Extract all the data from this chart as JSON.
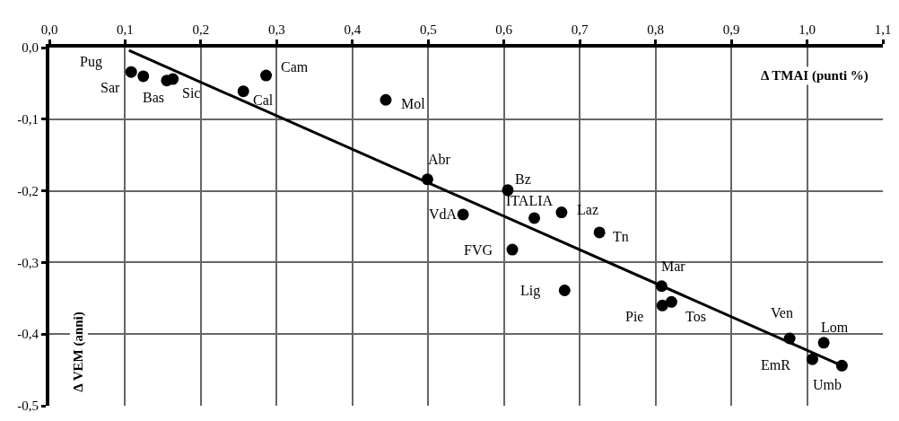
{
  "chart_data": {
    "type": "scatter",
    "xlabel": "Δ TMAI (punti %)",
    "ylabel": "Δ VEM (anni)",
    "xlim": [
      0,
      1.1
    ],
    "ylim": [
      -0.5,
      0
    ],
    "xticks": [
      {
        "value": 0,
        "label": "0,0"
      },
      {
        "value": 0.1,
        "label": "0,1"
      },
      {
        "value": 0.2,
        "label": "0,2"
      },
      {
        "value": 0.3,
        "label": "0,3"
      },
      {
        "value": 0.4,
        "label": "0,4"
      },
      {
        "value": 0.5,
        "label": "0,5"
      },
      {
        "value": 0.6,
        "label": "0,6"
      },
      {
        "value": 0.7,
        "label": "0,7"
      },
      {
        "value": 0.8,
        "label": "0,8"
      },
      {
        "value": 0.9,
        "label": "0,9"
      },
      {
        "value": 1.0,
        "label": "1,0"
      },
      {
        "value": 1.1,
        "label": "1,1"
      }
    ],
    "yticks": [
      {
        "value": 0,
        "label": "0,0"
      },
      {
        "value": -0.1,
        "label": "-0,1"
      },
      {
        "value": -0.2,
        "label": "-0,2"
      },
      {
        "value": -0.3,
        "label": "-0,3"
      },
      {
        "value": -0.4,
        "label": "-0,4"
      },
      {
        "value": -0.5,
        "label": "-0,5"
      }
    ],
    "grid": true,
    "series": [
      {
        "marker": "circle",
        "color": "#000000",
        "x": [
          0.108,
          0.124,
          0.155,
          0.163,
          0.256,
          0.286,
          0.444,
          0.499,
          0.605,
          0.64,
          0.676,
          0.546,
          0.726,
          0.611,
          0.68,
          0.808,
          0.809,
          0.821,
          0.977,
          1.022,
          1.007,
          1.046
        ],
        "values": [
          -0.034,
          -0.04,
          -0.046,
          -0.044,
          -0.061,
          -0.039,
          -0.073,
          -0.184,
          -0.199,
          -0.238,
          -0.23,
          -0.233,
          -0.258,
          -0.282,
          -0.339,
          -0.333,
          -0.36,
          -0.355,
          -0.406,
          -0.412,
          -0.435,
          -0.444
        ]
      },
      {
        "type": "line",
        "marker": "none",
        "color": "#000000",
        "x": [
          0.105,
          1.046
        ],
        "values": [
          -0.004,
          -0.444
        ]
      }
    ],
    "annotations": [
      {
        "text": "Pug",
        "x": 0.108,
        "y": -0.034
      },
      {
        "text": "Sar",
        "x": 0.124,
        "y": -0.04
      },
      {
        "text": "Bas",
        "x": 0.155,
        "y": -0.046
      },
      {
        "text": "Sic",
        "x": 0.163,
        "y": -0.044
      },
      {
        "text": "Cal",
        "x": 0.256,
        "y": -0.061
      },
      {
        "text": "Cam",
        "x": 0.286,
        "y": -0.039
      },
      {
        "text": "Mol",
        "x": 0.444,
        "y": -0.073
      },
      {
        "text": "Abr",
        "x": 0.499,
        "y": -0.184
      },
      {
        "text": "Bz",
        "x": 0.605,
        "y": -0.199
      },
      {
        "text": "ITALIA",
        "x": 0.64,
        "y": -0.238
      },
      {
        "text": "Laz",
        "x": 0.676,
        "y": -0.23
      },
      {
        "text": "VdA",
        "x": 0.546,
        "y": -0.233
      },
      {
        "text": "Tn",
        "x": 0.726,
        "y": -0.258
      },
      {
        "text": "FVG",
        "x": 0.611,
        "y": -0.282
      },
      {
        "text": "Lig",
        "x": 0.68,
        "y": -0.339
      },
      {
        "text": "Mar",
        "x": 0.808,
        "y": -0.333
      },
      {
        "text": "Pie",
        "x": 0.809,
        "y": -0.36
      },
      {
        "text": "Tos",
        "x": 0.821,
        "y": -0.355
      },
      {
        "text": "Ven",
        "x": 0.977,
        "y": -0.406
      },
      {
        "text": "Lom",
        "x": 1.022,
        "y": -0.412
      },
      {
        "text": "EmR",
        "x": 1.007,
        "y": -0.435
      },
      {
        "text": "Umb",
        "x": 1.046,
        "y": -0.444
      }
    ]
  }
}
